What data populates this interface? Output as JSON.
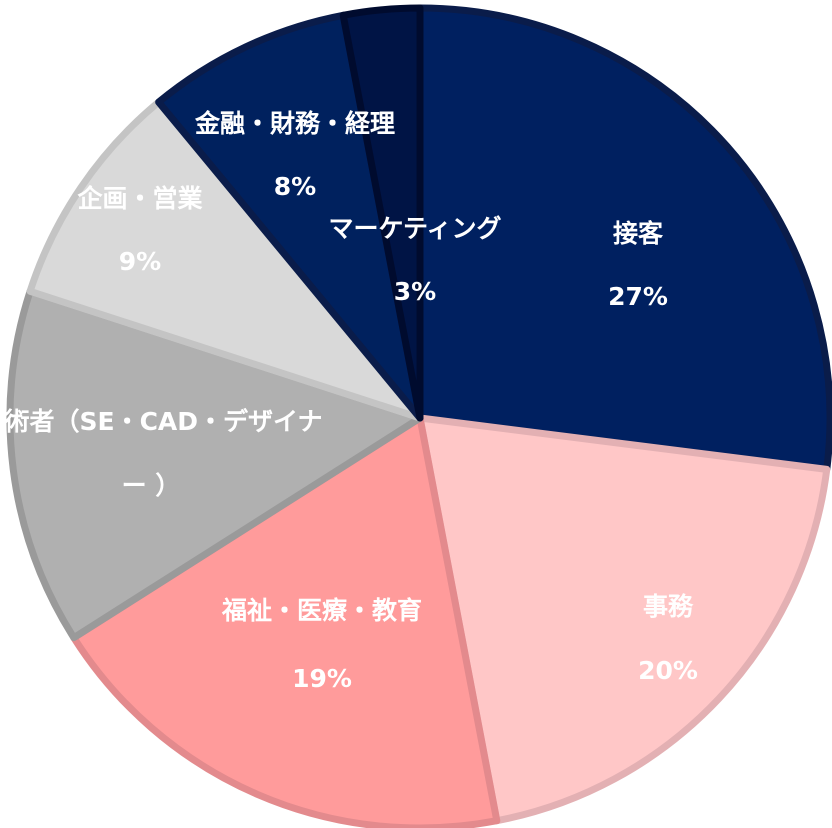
{
  "chart_data": {
    "type": "pie",
    "categories": [
      "接客",
      "事務",
      "福祉・医療・教育",
      "技術者（SE・CAD・デザイナー ）",
      "企画・営業",
      "金融・財務・経理",
      "マーケティング"
    ],
    "values": [
      27,
      20,
      19,
      14,
      9,
      8,
      3
    ],
    "value_labels": [
      "27%",
      "20%",
      "19%",
      null,
      "9%",
      "8%",
      "3%"
    ],
    "colors": [
      "#002060",
      "#ffc7c7",
      "#ff9b9b",
      "#b0b0b0",
      "#d9d9d9",
      "#00215e",
      "#001445"
    ],
    "edge_colors": [
      "#0a1c4a",
      "#e3b0b3",
      "#e38a8d",
      "#9a9a9a",
      "#c4c4c4",
      "#0a1c4a",
      "#000b2e"
    ]
  }
}
